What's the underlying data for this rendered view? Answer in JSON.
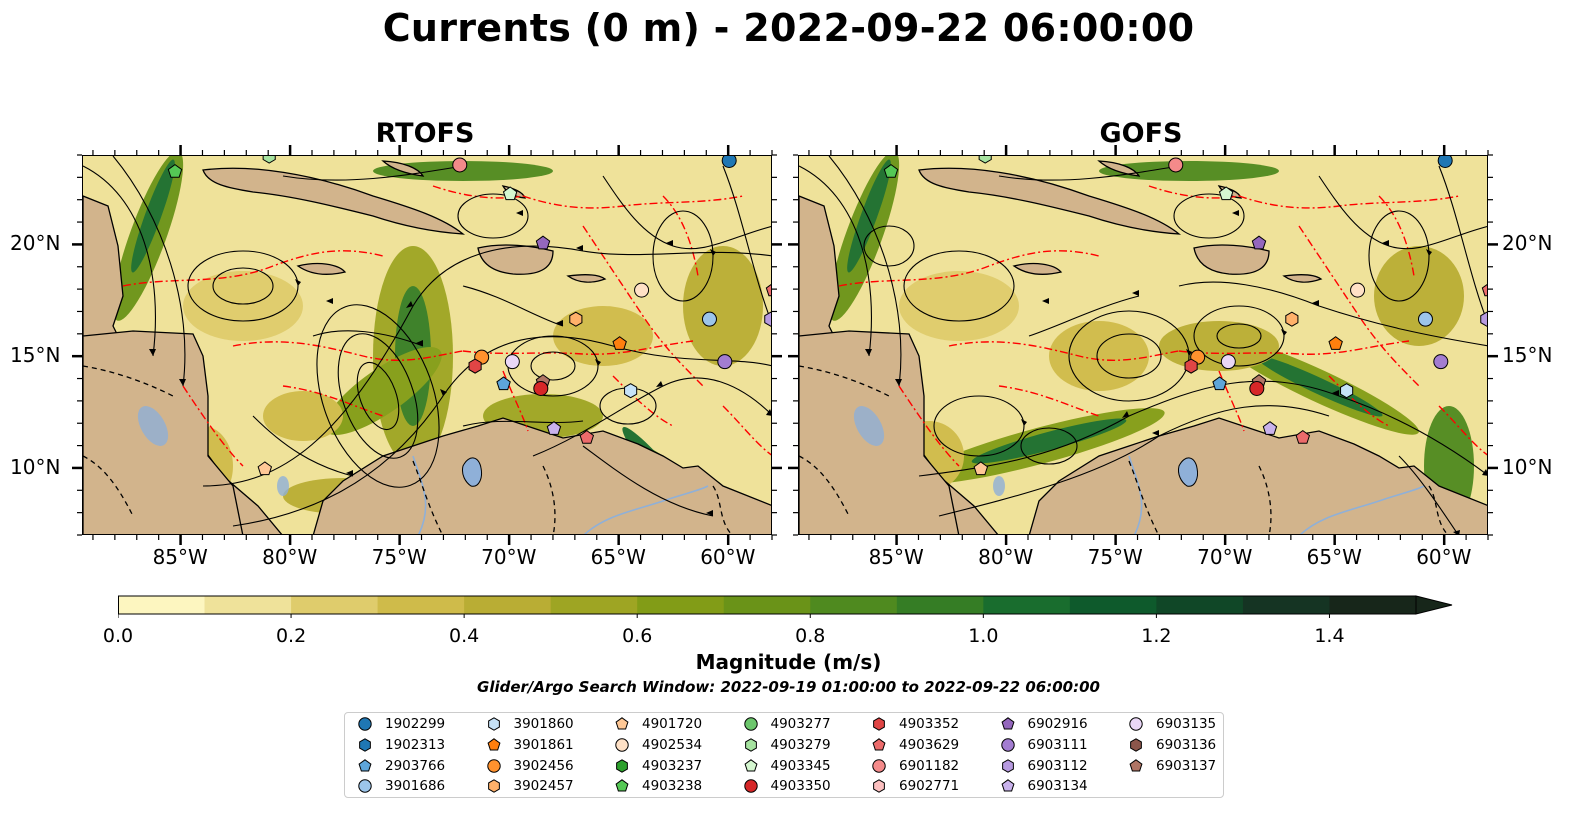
{
  "title": "Currents (0 m) - 2022-09-22 06:00:00",
  "panels": [
    {
      "name": "RTOFS",
      "side": "left"
    },
    {
      "name": "GOFS",
      "side": "right"
    }
  ],
  "axes": {
    "lon_ticks": [
      {
        "value": -85,
        "label": "85°W"
      },
      {
        "value": -80,
        "label": "80°W"
      },
      {
        "value": -75,
        "label": "75°W"
      },
      {
        "value": -70,
        "label": "70°W"
      },
      {
        "value": -65,
        "label": "65°W"
      },
      {
        "value": -60,
        "label": "60°W"
      }
    ],
    "lat_ticks": [
      {
        "value": 20,
        "label": "20°N"
      },
      {
        "value": 15,
        "label": "15°N"
      },
      {
        "value": 10,
        "label": "10°N"
      }
    ],
    "lon_range": [
      -89.5,
      -58.0
    ],
    "lat_range": [
      7.0,
      24.0
    ]
  },
  "colorbar": {
    "title": "Magnitude (m/s)",
    "min": 0.0,
    "max": 1.5,
    "step": 0.1,
    "extend": "max",
    "tick_labels": [
      "0.0",
      "0.2",
      "0.4",
      "0.6",
      "0.8",
      "1.0",
      "1.2",
      "1.4"
    ],
    "colors": [
      "#fdf6c0",
      "#efe29a",
      "#dfcc6c",
      "#cfbb4a",
      "#b9ad34",
      "#9ea523",
      "#829c17",
      "#6a9318",
      "#4f8a1f",
      "#357d25",
      "#196d2e",
      "#0e5a2c",
      "#104727",
      "#153423",
      "#17261a"
    ]
  },
  "search_window": "Glider/Argo Search Window: 2022-09-19 01:00:00 to 2022-09-22 06:00:00",
  "colors": {
    "land": "#d2b48c",
    "lakes": "#8fb0d8",
    "eez": "#ff0000",
    "streamlines": "#000000"
  },
  "legend": {
    "items": [
      {
        "id": "1902299",
        "color": "#1f77b4",
        "marker": "circle"
      },
      {
        "id": "1902313",
        "color": "#1f77b4",
        "marker": "hexagon"
      },
      {
        "id": "2903766",
        "color": "#5da5da",
        "marker": "pentagon"
      },
      {
        "id": "3901686",
        "color": "#9cc5ea",
        "marker": "circle"
      },
      {
        "id": "3901860",
        "color": "#c6e2f7",
        "marker": "hexagon"
      },
      {
        "id": "3901861",
        "color": "#ff7f0e",
        "marker": "pentagon"
      },
      {
        "id": "3902456",
        "color": "#ff922e",
        "marker": "circle"
      },
      {
        "id": "3902457",
        "color": "#ffb16a",
        "marker": "hexagon"
      },
      {
        "id": "4901720",
        "color": "#ffc896",
        "marker": "pentagon"
      },
      {
        "id": "4902534",
        "color": "#ffe1c6",
        "marker": "circle"
      },
      {
        "id": "4903237",
        "color": "#2ca02c",
        "marker": "hexagon"
      },
      {
        "id": "4903238",
        "color": "#55c855",
        "marker": "pentagon"
      },
      {
        "id": "4903277",
        "color": "#6cc66c",
        "marker": "circle"
      },
      {
        "id": "4903279",
        "color": "#a6e3a0",
        "marker": "hexagon"
      },
      {
        "id": "4903345",
        "color": "#d5f7d0",
        "marker": "pentagon"
      },
      {
        "id": "4903350",
        "color": "#d62728",
        "marker": "circle"
      },
      {
        "id": "4903352",
        "color": "#e04545",
        "marker": "hexagon"
      },
      {
        "id": "4903629",
        "color": "#ec6b6b",
        "marker": "pentagon"
      },
      {
        "id": "6901182",
        "color": "#f48a8a",
        "marker": "circle"
      },
      {
        "id": "6902771",
        "color": "#fcc0c0",
        "marker": "hexagon"
      },
      {
        "id": "6902916",
        "color": "#9467bd",
        "marker": "pentagon"
      },
      {
        "id": "6903111",
        "color": "#a37dd1",
        "marker": "circle"
      },
      {
        "id": "6903112",
        "color": "#b79ae0",
        "marker": "hexagon"
      },
      {
        "id": "6903134",
        "color": "#c9b2ec",
        "marker": "pentagon"
      },
      {
        "id": "6903135",
        "color": "#ead7f7",
        "marker": "circle"
      },
      {
        "id": "6903136",
        "color": "#8c564b",
        "marker": "hexagon"
      },
      {
        "id": "6903137",
        "color": "#b07565",
        "marker": "pentagon"
      }
    ]
  },
  "floats": [
    {
      "lon": -85.3,
      "lat": 23.3,
      "item": 11
    },
    {
      "lon": -81.0,
      "lat": 24.0,
      "item": 13
    },
    {
      "lon": -72.3,
      "lat": 23.6,
      "item": 18
    },
    {
      "lon": -70.0,
      "lat": 22.3,
      "item": 14
    },
    {
      "lon": -68.5,
      "lat": 20.1,
      "item": 20
    },
    {
      "lon": -60.0,
      "lat": 23.8,
      "item": 0
    },
    {
      "lon": -64.0,
      "lat": 18.0,
      "item": 9
    },
    {
      "lon": -67.0,
      "lat": 16.7,
      "item": 7
    },
    {
      "lon": -60.9,
      "lat": 16.7,
      "item": 3
    },
    {
      "lon": -58.1,
      "lat": 16.7,
      "item": 22
    },
    {
      "lon": -58.0,
      "lat": 18.0,
      "item": 17
    },
    {
      "lon": -60.2,
      "lat": 14.8,
      "item": 21
    },
    {
      "lon": -65.0,
      "lat": 15.6,
      "item": 5
    },
    {
      "lon": -64.5,
      "lat": 13.5,
      "item": 4
    },
    {
      "lon": -71.3,
      "lat": 15.0,
      "item": 6
    },
    {
      "lon": -71.6,
      "lat": 14.6,
      "item": 16
    },
    {
      "lon": -69.9,
      "lat": 14.8,
      "item": 24
    },
    {
      "lon": -70.3,
      "lat": 13.8,
      "item": 2
    },
    {
      "lon": -68.5,
      "lat": 13.9,
      "item": 26
    },
    {
      "lon": -68.6,
      "lat": 13.6,
      "item": 15
    },
    {
      "lon": -68.0,
      "lat": 11.8,
      "item": 23
    },
    {
      "lon": -66.5,
      "lat": 11.4,
      "item": 17
    },
    {
      "lon": -81.2,
      "lat": 10.0,
      "item": 8
    }
  ]
}
